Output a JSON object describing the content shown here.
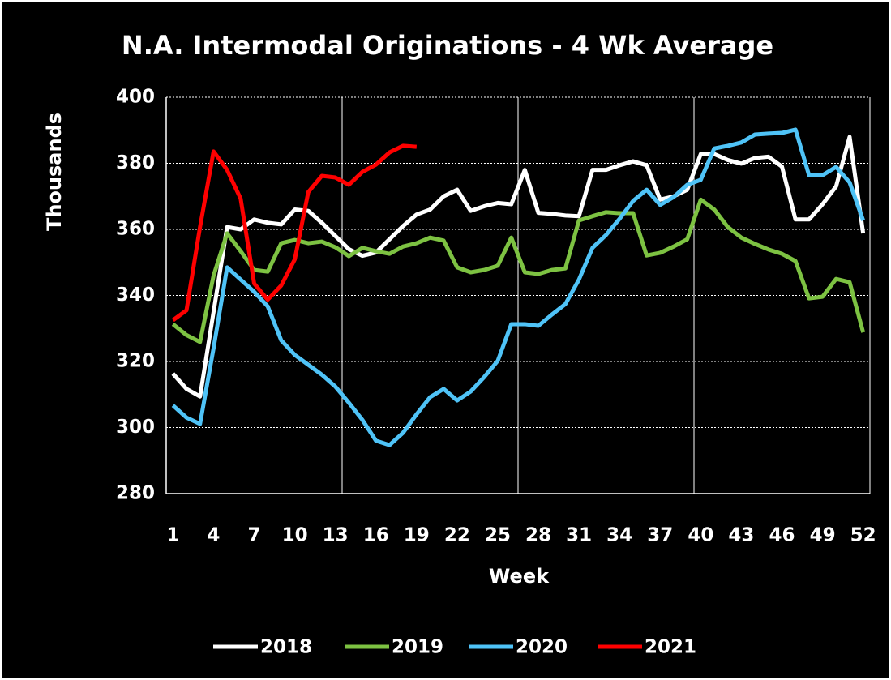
{
  "chart_data": {
    "type": "line",
    "title": "N.A. Intermodal Originations - 4 Wk Average",
    "x_label": "Week",
    "y_label": "Thousands",
    "x": [
      1,
      2,
      3,
      4,
      5,
      6,
      7,
      8,
      9,
      10,
      11,
      12,
      13,
      14,
      15,
      16,
      17,
      18,
      19,
      20,
      21,
      22,
      23,
      24,
      25,
      26,
      27,
      28,
      29,
      30,
      31,
      32,
      33,
      34,
      35,
      36,
      37,
      38,
      39,
      40,
      41,
      42,
      43,
      44,
      45,
      46,
      47,
      48,
      49,
      50,
      51,
      52
    ],
    "xlim": [
      0.5,
      52.5
    ],
    "xticks": [
      1,
      4,
      7,
      10,
      13,
      16,
      19,
      22,
      25,
      28,
      31,
      34,
      37,
      40,
      43,
      46,
      49,
      52
    ],
    "x_gridlines": [
      13.5,
      26.5,
      39.5,
      52.5
    ],
    "ylim": [
      280,
      400
    ],
    "yticks": [
      280,
      300,
      320,
      340,
      360,
      380,
      400
    ],
    "grid": true,
    "legend": "bottom",
    "series": [
      {
        "name": "2018",
        "color": "#ffffff",
        "values": [
          316.3,
          311.7,
          309.4,
          335,
          360.7,
          360,
          363,
          362,
          361.5,
          366,
          365.6,
          362,
          358,
          354,
          352,
          353,
          357,
          361,
          364.5,
          366,
          370,
          372,
          365.6,
          367,
          368,
          367.6,
          378,
          365,
          364.7,
          364.2,
          364,
          378,
          378,
          379.4,
          380.6,
          379.4,
          369,
          370,
          372,
          382.8,
          382.8,
          381,
          379.9,
          381.6,
          382,
          379,
          363,
          363,
          367.6,
          373,
          388,
          358.8
        ]
      },
      {
        "name": "2019",
        "color": "#7dc242",
        "values": [
          331.3,
          328,
          325.9,
          346,
          358.8,
          353.4,
          347.7,
          347.2,
          355.8,
          356.8,
          355.8,
          356.3,
          354.6,
          351.9,
          354.4,
          353.4,
          352.6,
          354.8,
          355.8,
          357.5,
          356.6,
          348.5,
          347,
          347.7,
          349,
          357.5,
          347,
          346.5,
          347.7,
          348.2,
          362.7,
          364,
          365.2,
          364.9,
          364.9,
          352.1,
          352.9,
          354.8,
          357,
          369,
          366,
          360.7,
          357.5,
          355.6,
          353.9,
          352.6,
          350.4,
          339.1,
          339.6,
          345,
          344,
          328.8
        ]
      },
      {
        "name": "2020",
        "color": "#4fc3f7",
        "values": [
          306.7,
          303,
          301.1,
          324,
          348.5,
          344.8,
          341.1,
          336.7,
          326.4,
          322,
          319,
          316,
          312.4,
          307.5,
          302.3,
          296,
          294.7,
          298.4,
          304,
          309.2,
          311.7,
          308.2,
          310.9,
          315.3,
          320.2,
          331.3,
          331.3,
          330.8,
          334.2,
          337.4,
          344.8,
          354.4,
          358.3,
          363.2,
          368.6,
          372,
          367.4,
          369.8,
          373.5,
          375,
          384.5,
          385.3,
          386.3,
          388.7,
          389,
          389.2,
          390.2,
          376.4,
          376.4,
          378.9,
          374.2,
          362.7
        ]
      },
      {
        "name": "2021",
        "color": "#ff0000",
        "values": [
          332.5,
          335.5,
          360.7,
          383.6,
          378,
          369.3,
          343.6,
          338.7,
          343,
          350.9,
          371.3,
          376.2,
          375.7,
          373.5,
          377.4,
          379.6,
          383.3,
          385.3,
          385,
          null,
          null,
          null,
          null,
          null,
          null,
          null,
          null,
          null,
          null,
          null,
          null,
          null,
          null,
          null,
          null,
          null,
          null,
          null,
          null,
          null,
          null,
          null,
          null,
          null,
          null,
          null,
          null,
          null,
          null,
          null,
          null,
          null
        ]
      }
    ]
  }
}
